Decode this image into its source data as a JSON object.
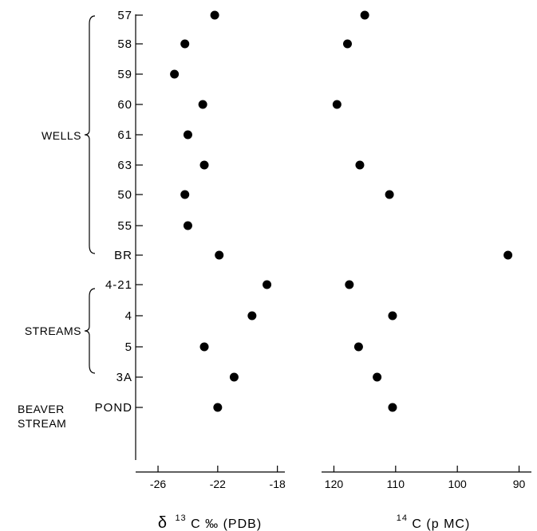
{
  "chart_data": {
    "type": "scatter",
    "rows": [
      {
        "label": "57",
        "group": "WELLS",
        "d13c": -22.2,
        "c14": 115.0
      },
      {
        "label": "58",
        "group": "WELLS",
        "d13c": -24.2,
        "c14": 117.8
      },
      {
        "label": "59",
        "group": "WELLS",
        "d13c": -24.9,
        "c14": null
      },
      {
        "label": "60",
        "group": "WELLS",
        "d13c": -23.0,
        "c14": 119.5
      },
      {
        "label": "61",
        "group": "WELLS",
        "d13c": -24.0,
        "c14": null
      },
      {
        "label": "63",
        "group": "WELLS",
        "d13c": -22.9,
        "c14": 115.8
      },
      {
        "label": "50",
        "group": "WELLS",
        "d13c": -24.2,
        "c14": 111.0
      },
      {
        "label": "55",
        "group": "WELLS",
        "d13c": -24.0,
        "c14": null
      },
      {
        "label": "BR",
        "group": "WELLS",
        "d13c": -21.9,
        "c14": 91.8
      },
      {
        "label": "4-21",
        "group": "STREAMS",
        "d13c": -18.7,
        "c14": 117.5
      },
      {
        "label": "4",
        "group": "STREAMS",
        "d13c": -19.7,
        "c14": 110.5
      },
      {
        "label": "5",
        "group": "STREAMS",
        "d13c": -22.9,
        "c14": 116.0
      },
      {
        "label": "3A",
        "group": "STREAMS",
        "d13c": -20.9,
        "c14": 113.0
      },
      {
        "label": "POND",
        "group": "BEAVER STREAM",
        "d13c": -22.0,
        "c14": 110.5
      }
    ],
    "groups": [
      {
        "name": "WELLS"
      },
      {
        "name": "STREAMS"
      },
      {
        "name": "BEAVER\nSTREAM"
      }
    ],
    "left_axis": {
      "label_prefix": "δ",
      "label_sup": "13",
      "label_suffix": "C ‰ (PDB)",
      "xlim": [
        -27.5,
        -17.5
      ],
      "ticks": [
        -26,
        -22,
        -18
      ],
      "tick_labels": [
        "-26",
        "-22",
        "-18"
      ]
    },
    "right_axis": {
      "label_sup": "14",
      "label_suffix": "C (p MC)",
      "xlim": [
        122,
        88
      ],
      "ticks": [
        120,
        110,
        100,
        90
      ],
      "tick_labels": [
        "120",
        "110",
        "100",
        "90"
      ]
    },
    "grid": false
  }
}
